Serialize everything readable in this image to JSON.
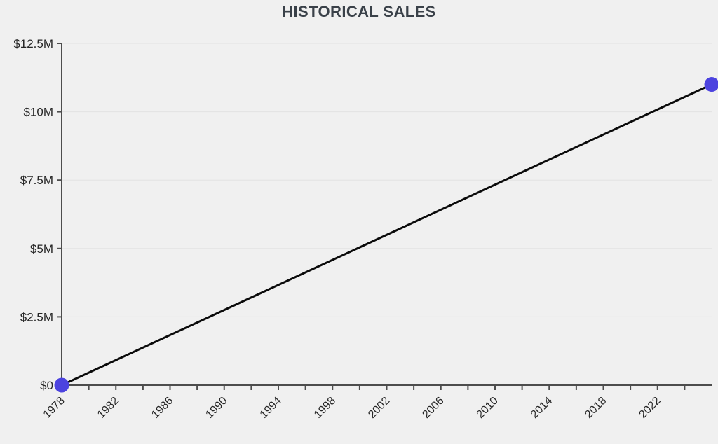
{
  "page": {
    "title": "HISTORICAL SALES"
  },
  "colors": {
    "background": "#F0F0F0",
    "title": "#3A4149",
    "axis": "#4D4D4D",
    "grid": "#E2E2E2",
    "tick_label": "#262626",
    "series_line": "#0B0B0B",
    "point_fill": "#4C43DF"
  },
  "chart_data": {
    "type": "line",
    "title": "HISTORICAL SALES",
    "xlabel": "",
    "ylabel": "",
    "xlim": [
      1978,
      2026
    ],
    "ylim": [
      0,
      12500000
    ],
    "grid": "horizontal-only",
    "legend_position": "none",
    "x_label_rotation_deg": -45,
    "series": [
      {
        "name": "Historical Sales",
        "points": [
          {
            "year": 1978,
            "value": 0
          },
          {
            "year": 2026,
            "value": 11000000
          }
        ]
      }
    ],
    "y_ticks": [
      {
        "value": 0,
        "label": "$0"
      },
      {
        "value": 2500000,
        "label": "$2.5M"
      },
      {
        "value": 5000000,
        "label": "$5M"
      },
      {
        "value": 7500000,
        "label": "$7.5M"
      },
      {
        "value": 10000000,
        "label": "$10M"
      },
      {
        "value": 12500000,
        "label": "$12.5M"
      }
    ],
    "x_tick_years": [
      1978,
      1980,
      1982,
      1984,
      1986,
      1988,
      1990,
      1992,
      1994,
      1996,
      1998,
      2000,
      2002,
      2004,
      2006,
      2008,
      2010,
      2012,
      2014,
      2016,
      2018,
      2020,
      2022,
      2024
    ],
    "x_label_years": [
      1978,
      1982,
      1986,
      1990,
      1994,
      1998,
      2002,
      2006,
      2010,
      2014,
      2018,
      2022
    ]
  }
}
